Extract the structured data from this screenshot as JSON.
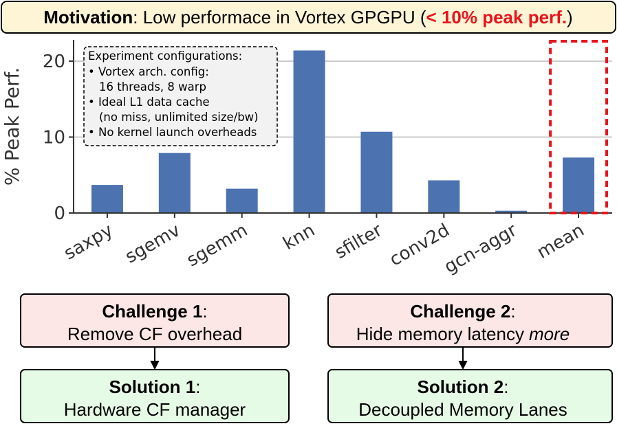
{
  "header": {
    "bold": "Motivation",
    "text": ": Low performace in Vortex GPGPU (",
    "highlight": "< 10% peak perf.",
    "close": ")"
  },
  "chart_data": {
    "type": "bar",
    "ylabel": "% Peak Perf.",
    "categories": [
      "saxpy",
      "sgemv",
      "sgemm",
      "knn",
      "sfilter",
      "conv2d",
      "gcn-aggr",
      "mean"
    ],
    "values": [
      3.7,
      7.9,
      3.2,
      21.4,
      10.7,
      4.3,
      0.3,
      7.3
    ],
    "color": "#4c72b0",
    "ylim": [
      0,
      22.8
    ],
    "yticks": [
      0,
      10,
      20
    ],
    "grid": true,
    "annotation": {
      "title": "Experiment configurations:",
      "lines": [
        "• Vortex arch. config:",
        "16 threads, 8 warp",
        "• Ideal L1 data cache",
        "(no miss, unlimited size/bw)",
        "• No kernel launch overheads"
      ]
    }
  },
  "boxes": [
    {
      "heading": "Challenge 1",
      "colon": ":",
      "text": "Remove CF overhead"
    },
    {
      "heading": "Challenge 2",
      "colon": ":",
      "text": "Hide memory latency",
      "emphasis": "more"
    },
    {
      "heading": "Solution 1",
      "colon": ":",
      "text": "Hardware CF manager"
    },
    {
      "heading": "Solution 2",
      "colon": ":",
      "text": "Decoupled Memory Lanes"
    }
  ]
}
